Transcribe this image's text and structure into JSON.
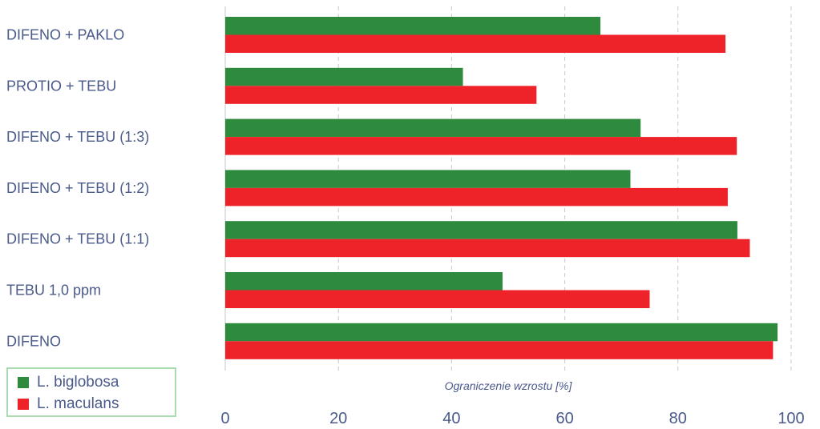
{
  "chart_data": {
    "type": "bar",
    "orientation": "horizontal",
    "categories": [
      "DIFENO + PAKLO",
      "PROTIO + TEBU",
      "DIFENO + TEBU (1:3)",
      "DIFENO + TEBU (1:2)",
      "DIFENO + TEBU (1:1)",
      "TEBU 1,0 ppm",
      "DIFENO"
    ],
    "series": [
      {
        "name": "L. biglobosa",
        "color": "#2e8b3e",
        "values": [
          66.3,
          42,
          73.4,
          71.6,
          90.5,
          49,
          97.6
        ]
      },
      {
        "name": "L. maculans",
        "color": "#ee2229",
        "values": [
          88.4,
          55,
          90.4,
          88.8,
          92.7,
          75,
          96.8
        ]
      }
    ],
    "xlabel": "Ograniczenie wzrostu [%]",
    "xlim": [
      0,
      100
    ],
    "xticks": [
      "0",
      "20",
      "40",
      "60",
      "80",
      "100"
    ],
    "grid": "vertical dashed",
    "legend": "bottom-left"
  }
}
